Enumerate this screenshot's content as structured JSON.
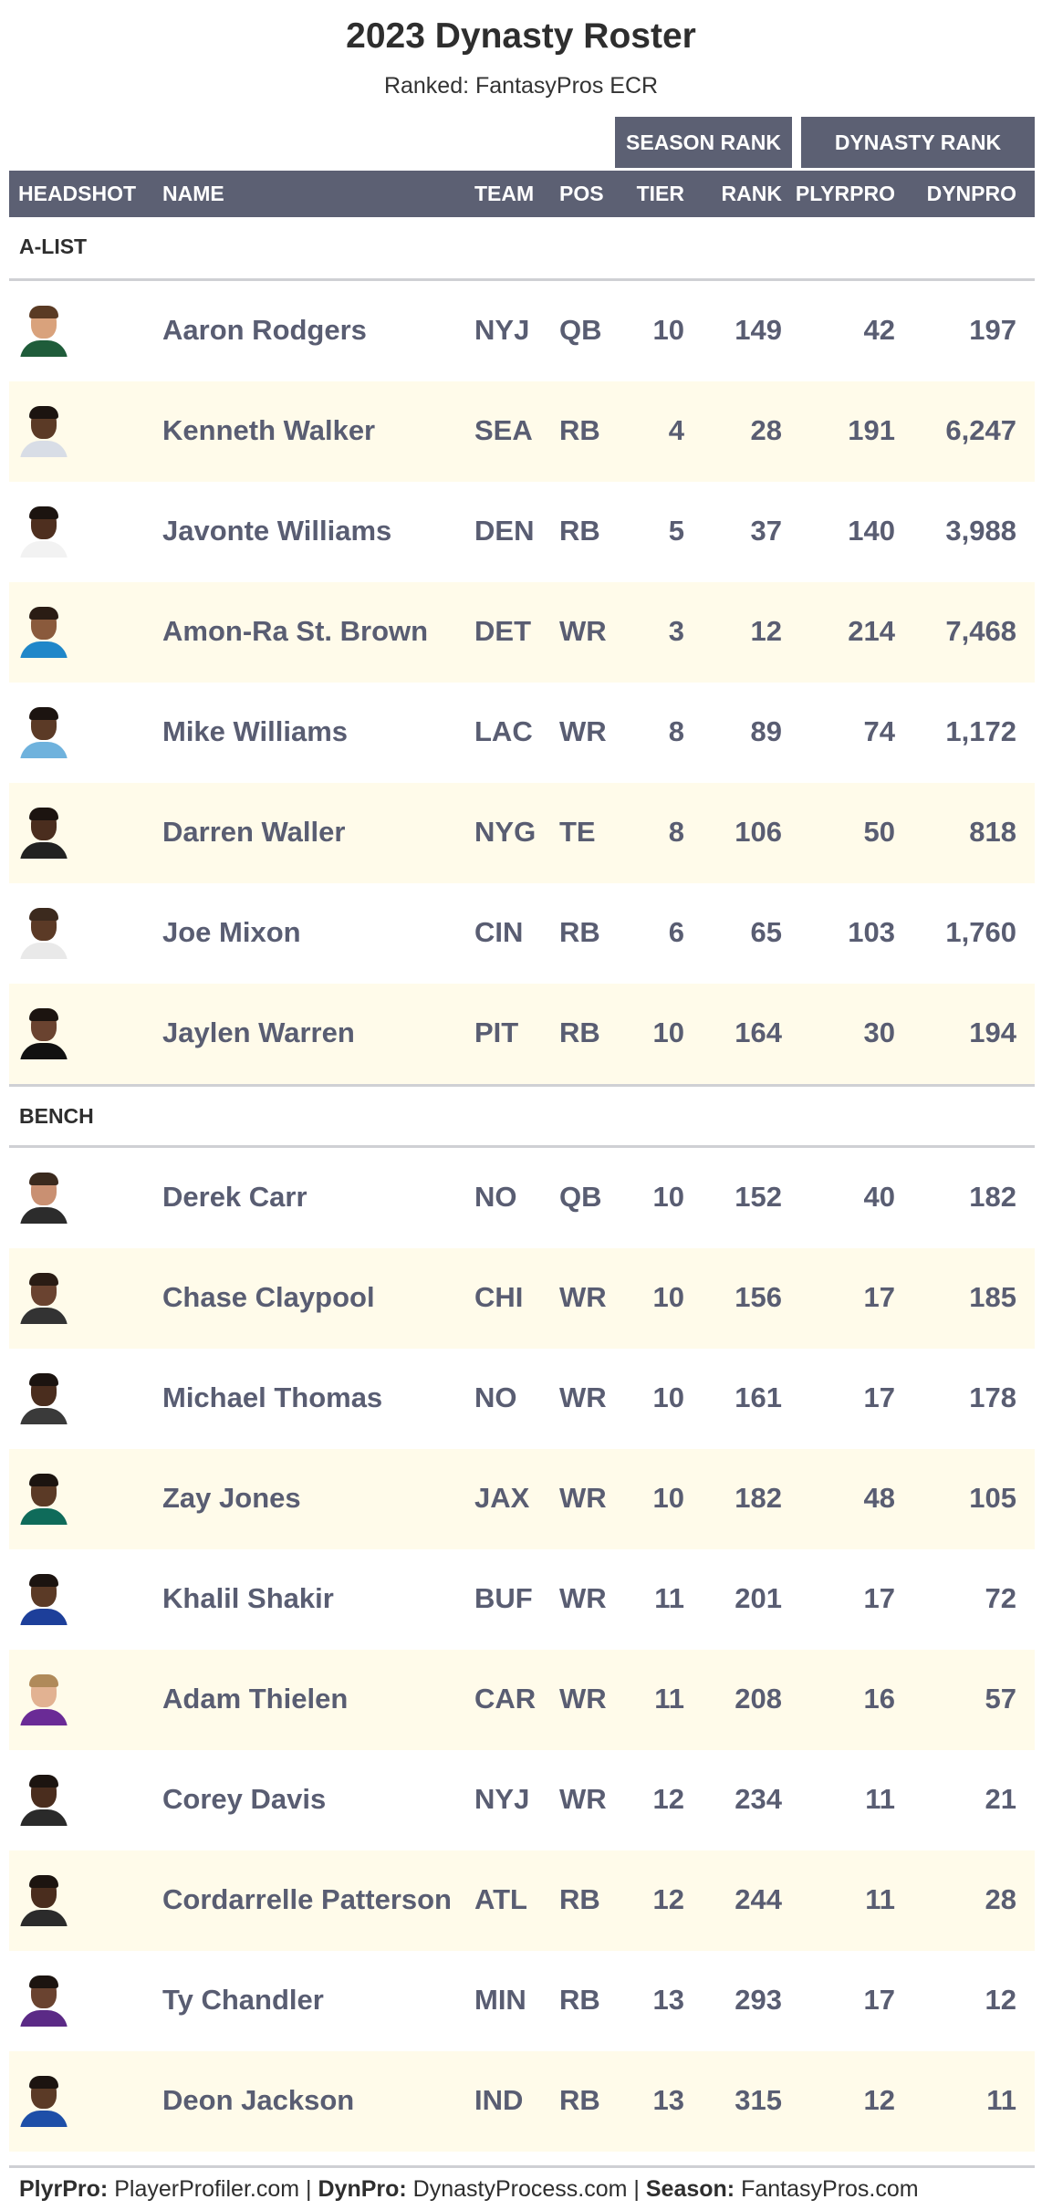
{
  "title": "2023 Dynasty Roster",
  "subtitle": "Ranked: FantasyPros ECR",
  "column_groups": {
    "season_rank": "SEASON RANK",
    "dynasty_rank": "DYNASTY RANK"
  },
  "columns": {
    "headshot": "HEADSHOT",
    "name": "NAME",
    "team": "TEAM",
    "pos": "POS",
    "tier": "TIER",
    "rank": "RANK",
    "plyrpro": "PLYRPRO",
    "dynpro": "DYNPRO"
  },
  "sections": [
    {
      "label": "A-LIST",
      "players": [
        {
          "name": "Aaron Rodgers",
          "team": "NYJ",
          "pos": "QB",
          "tier": "10",
          "rank": "149",
          "plyrpro": "42",
          "dynpro": "197"
        },
        {
          "name": "Kenneth Walker",
          "team": "SEA",
          "pos": "RB",
          "tier": "4",
          "rank": "28",
          "plyrpro": "191",
          "dynpro": "6,247"
        },
        {
          "name": "Javonte Williams",
          "team": "DEN",
          "pos": "RB",
          "tier": "5",
          "rank": "37",
          "plyrpro": "140",
          "dynpro": "3,988"
        },
        {
          "name": "Amon-Ra St. Brown",
          "team": "DET",
          "pos": "WR",
          "tier": "3",
          "rank": "12",
          "plyrpro": "214",
          "dynpro": "7,468"
        },
        {
          "name": "Mike Williams",
          "team": "LAC",
          "pos": "WR",
          "tier": "8",
          "rank": "89",
          "plyrpro": "74",
          "dynpro": "1,172"
        },
        {
          "name": "Darren Waller",
          "team": "NYG",
          "pos": "TE",
          "tier": "8",
          "rank": "106",
          "plyrpro": "50",
          "dynpro": "818"
        },
        {
          "name": "Joe Mixon",
          "team": "CIN",
          "pos": "RB",
          "tier": "6",
          "rank": "65",
          "plyrpro": "103",
          "dynpro": "1,760"
        },
        {
          "name": "Jaylen Warren",
          "team": "PIT",
          "pos": "RB",
          "tier": "10",
          "rank": "164",
          "plyrpro": "30",
          "dynpro": "194"
        }
      ]
    },
    {
      "label": "BENCH",
      "players": [
        {
          "name": "Derek Carr",
          "team": "NO",
          "pos": "QB",
          "tier": "10",
          "rank": "152",
          "plyrpro": "40",
          "dynpro": "182"
        },
        {
          "name": "Chase Claypool",
          "team": "CHI",
          "pos": "WR",
          "tier": "10",
          "rank": "156",
          "plyrpro": "17",
          "dynpro": "185"
        },
        {
          "name": "Michael Thomas",
          "team": "NO",
          "pos": "WR",
          "tier": "10",
          "rank": "161",
          "plyrpro": "17",
          "dynpro": "178"
        },
        {
          "name": "Zay Jones",
          "team": "JAX",
          "pos": "WR",
          "tier": "10",
          "rank": "182",
          "plyrpro": "48",
          "dynpro": "105"
        },
        {
          "name": "Khalil Shakir",
          "team": "BUF",
          "pos": "WR",
          "tier": "11",
          "rank": "201",
          "plyrpro": "17",
          "dynpro": "72"
        },
        {
          "name": "Adam Thielen",
          "team": "CAR",
          "pos": "WR",
          "tier": "11",
          "rank": "208",
          "plyrpro": "16",
          "dynpro": "57"
        },
        {
          "name": "Corey Davis",
          "team": "NYJ",
          "pos": "WR",
          "tier": "12",
          "rank": "234",
          "plyrpro": "11",
          "dynpro": "21"
        },
        {
          "name": "Cordarrelle Patterson",
          "team": "ATL",
          "pos": "RB",
          "tier": "12",
          "rank": "244",
          "plyrpro": "11",
          "dynpro": "28"
        },
        {
          "name": "Ty Chandler",
          "team": "MIN",
          "pos": "RB",
          "tier": "13",
          "rank": "293",
          "plyrpro": "17",
          "dynpro": "12"
        },
        {
          "name": "Deon Jackson",
          "team": "IND",
          "pos": "RB",
          "tier": "13",
          "rank": "315",
          "plyrpro": "12",
          "dynpro": "11"
        }
      ]
    }
  ],
  "headshot_colors": [
    {
      "skin": "#d9a27c",
      "hair": "#5a3b24",
      "jersey": "#1f5c3a"
    },
    {
      "skin": "#5b3a26",
      "hair": "#1c1410",
      "jersey": "#d8dde6"
    },
    {
      "skin": "#4e2f1f",
      "hair": "#1c1410",
      "jersey": "#f2f2f2"
    },
    {
      "skin": "#8a5a3c",
      "hair": "#2a1c14",
      "jersey": "#1f87c9"
    },
    {
      "skin": "#5b3a26",
      "hair": "#1c1410",
      "jersey": "#6fb2dd"
    },
    {
      "skin": "#4a2d1e",
      "hair": "#1c1410",
      "jersey": "#222222"
    },
    {
      "skin": "#5b3a26",
      "hair": "#3c2a1e",
      "jersey": "#e9e9e9"
    },
    {
      "skin": "#6a4330",
      "hair": "#1c1410",
      "jersey": "#111111"
    },
    {
      "skin": "#c99072",
      "hair": "#3a2a1e",
      "jersey": "#2c2c2c"
    },
    {
      "skin": "#6a4330",
      "hair": "#2a1c14",
      "jersey": "#333333"
    },
    {
      "skin": "#4a2d1e",
      "hair": "#1c1410",
      "jersey": "#3a3a3a"
    },
    {
      "skin": "#5b3a26",
      "hair": "#1c1410",
      "jersey": "#0f6b5a"
    },
    {
      "skin": "#5b3a26",
      "hair": "#1c1410",
      "jersey": "#1d3f9a"
    },
    {
      "skin": "#e2b292",
      "hair": "#b08a5a",
      "jersey": "#6a2b96"
    },
    {
      "skin": "#4a2d1e",
      "hair": "#1c1410",
      "jersey": "#2a2a2a"
    },
    {
      "skin": "#4a2d1e",
      "hair": "#1c1410",
      "jersey": "#2b2b2b"
    },
    {
      "skin": "#6a4330",
      "hair": "#1c1410",
      "jersey": "#5b2a86"
    },
    {
      "skin": "#5b3a26",
      "hair": "#1c1410",
      "jersey": "#1e4fa8"
    }
  ],
  "footer": {
    "plyrpro_label": "PlyrPro:",
    "plyrpro_source": "PlayerProfiler.com",
    "sep1": "|",
    "dynpro_label": "DynPro:",
    "dynpro_source": "DynastyProcess.com",
    "sep2": "|",
    "season_label": "Season:",
    "season_source": "FantasyPros.com"
  }
}
